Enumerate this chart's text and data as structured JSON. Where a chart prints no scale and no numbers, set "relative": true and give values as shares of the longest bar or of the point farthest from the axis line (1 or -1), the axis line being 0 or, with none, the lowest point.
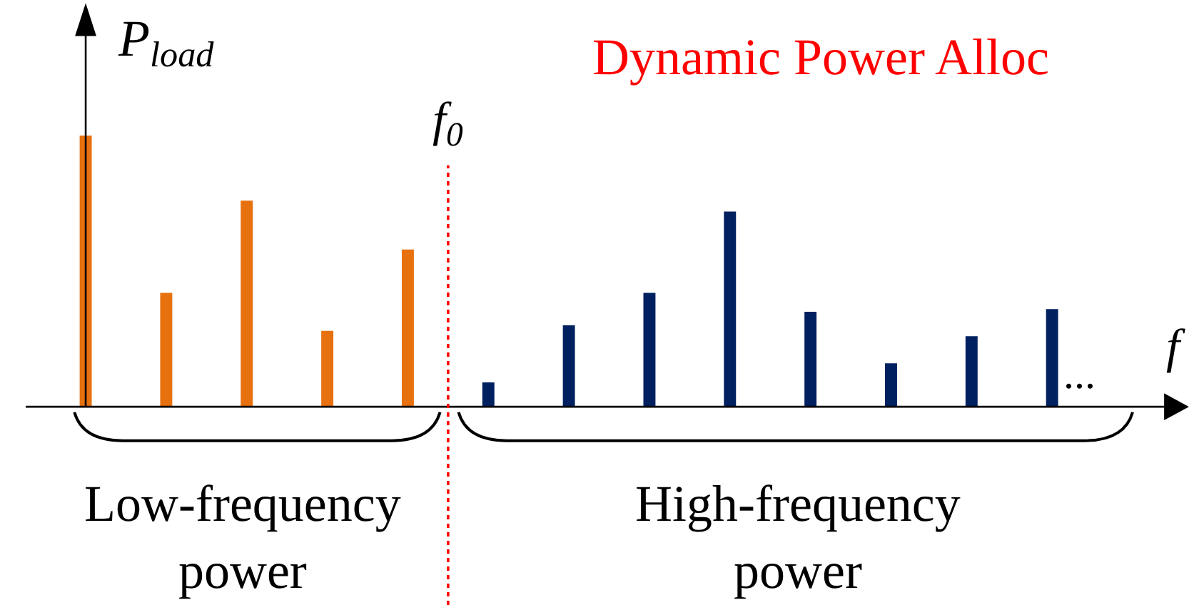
{
  "chart_data": {
    "type": "bar",
    "relative": true,
    "ylabel": "P$_{load}$",
    "xlabel": "f",
    "categories": [
      null,
      null,
      null,
      null,
      null,
      null,
      null,
      null,
      null,
      null,
      null,
      null,
      null
    ],
    "values": [
      1,
      0.42,
      0.76,
      0.28,
      0.58,
      0.09,
      0.3,
      0.42,
      0.72,
      0.35,
      0.16,
      0.26,
      0.36
    ],
    "colors": [
      "#e8710f",
      "#e8710f",
      "#e8710f",
      "#e8710f",
      "#e8710f",
      "#002060",
      "#002060",
      "#002060",
      "#002060",
      "#002060",
      "#002060",
      "#002060",
      "#002060"
    ],
    "annotations": [
      "Dynamic Power Alloc",
      "Low-frequency power",
      "High-frequency power",
      "...",
      "f$_{0}$"
    ]
  }
}
